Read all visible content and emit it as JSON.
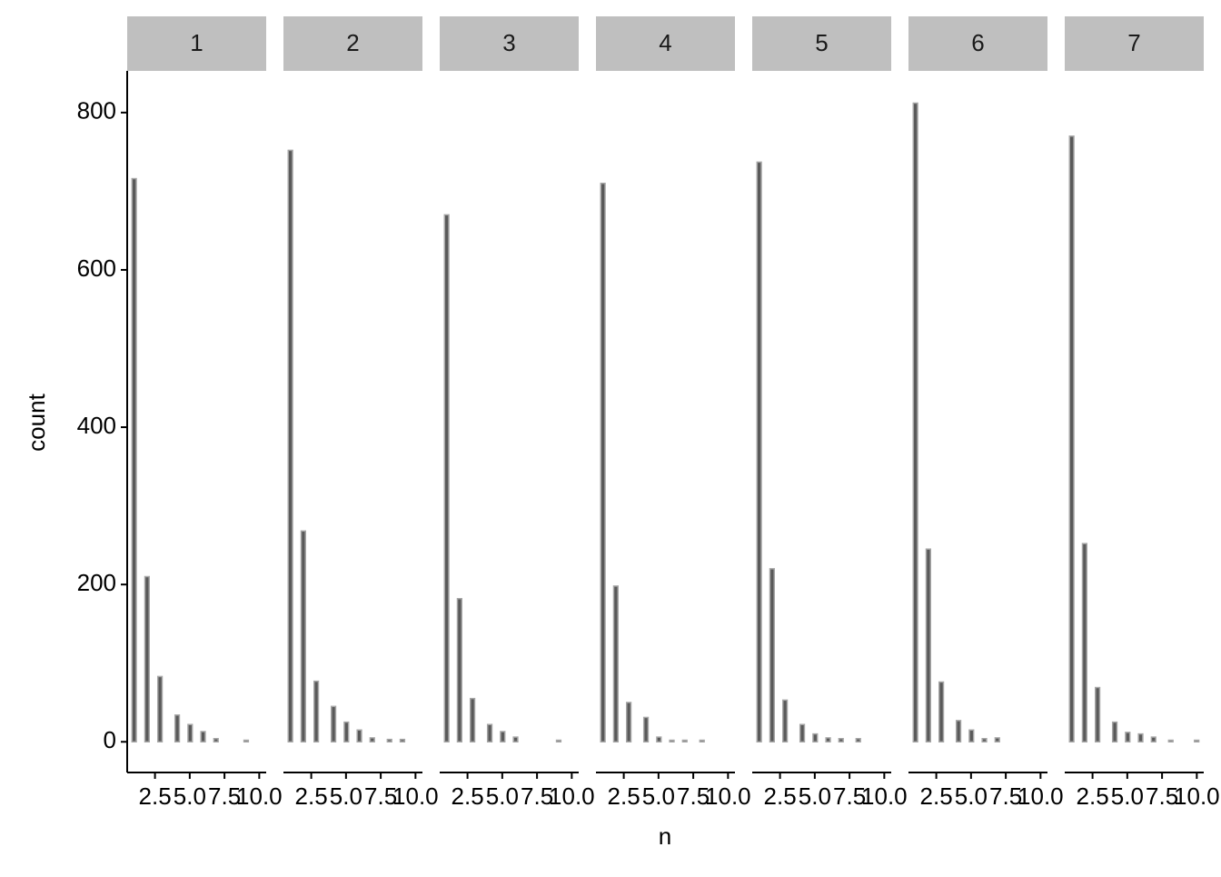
{
  "chart_data": {
    "type": "histogram",
    "x_label": "n",
    "y_label": "count",
    "bins": [
      0.845,
      1.155,
      1.465,
      1.775,
      2.085,
      2.395,
      2.705,
      3.015,
      3.325,
      3.635,
      3.945,
      4.255,
      4.565,
      4.875,
      5.185,
      5.495,
      5.805,
      6.115,
      6.425,
      6.735,
      7.045,
      7.355,
      7.665,
      7.975,
      8.285,
      8.595,
      8.905,
      9.215,
      9.525,
      9.835,
      10.145
    ],
    "color": "#595959",
    "edge_color": "#a6a6a6",
    "xlim": [
      0.5,
      10.5
    ],
    "ylim": [
      -39,
      853
    ],
    "xticks": [
      2.5,
      {
        "value": 5,
        "label": "5.0"
      },
      7.5,
      {
        "value": 10,
        "label": "10.0"
      }
    ],
    "yticks": [
      0,
      200,
      400,
      600,
      800
    ],
    "series": [
      {
        "name": "1",
        "values": [
          716,
          0,
          0,
          210,
          0,
          0,
          83,
          0,
          0,
          0,
          34,
          0,
          0,
          22,
          0,
          0,
          13,
          0,
          0,
          4,
          0,
          0,
          0,
          0,
          0,
          0,
          2,
          0,
          0,
          0
        ]
      },
      {
        "name": "2",
        "values": [
          752,
          0,
          0,
          268,
          0,
          0,
          77,
          0,
          0,
          0,
          45,
          0,
          0,
          25,
          0,
          0,
          15,
          0,
          0,
          5,
          0,
          0,
          0,
          3,
          0,
          0,
          3,
          0,
          0,
          0
        ]
      },
      {
        "name": "3",
        "values": [
          670,
          0,
          0,
          182,
          0,
          0,
          55,
          0,
          0,
          0,
          22,
          0,
          0,
          13,
          0,
          0,
          6,
          0,
          0,
          0,
          0,
          0,
          0,
          0,
          0,
          0,
          2,
          0,
          0,
          0
        ]
      },
      {
        "name": "4",
        "values": [
          710,
          0,
          0,
          198,
          0,
          0,
          50,
          0,
          0,
          0,
          31,
          0,
          0,
          6,
          0,
          0,
          2,
          0,
          0,
          2,
          0,
          0,
          0,
          2,
          0,
          0,
          0,
          0,
          0,
          0
        ]
      },
      {
        "name": "5",
        "values": [
          737,
          0,
          0,
          220,
          0,
          0,
          53,
          0,
          0,
          0,
          22,
          0,
          0,
          10,
          0,
          0,
          5,
          0,
          0,
          4,
          0,
          0,
          0,
          4,
          0,
          0,
          0,
          0,
          0,
          0
        ]
      },
      {
        "name": "6",
        "values": [
          812,
          0,
          0,
          245,
          0,
          0,
          76,
          0,
          0,
          0,
          27,
          0,
          0,
          15,
          0,
          0,
          4,
          0,
          0,
          5,
          0,
          0,
          0,
          0,
          0,
          0,
          0,
          0,
          0,
          0
        ]
      },
      {
        "name": "7",
        "values": [
          770,
          0,
          0,
          252,
          0,
          0,
          69,
          0,
          0,
          0,
          25,
          0,
          0,
          12,
          0,
          0,
          10,
          0,
          0,
          6,
          0,
          0,
          0,
          2,
          0,
          0,
          0,
          0,
          0,
          2
        ]
      }
    ]
  }
}
